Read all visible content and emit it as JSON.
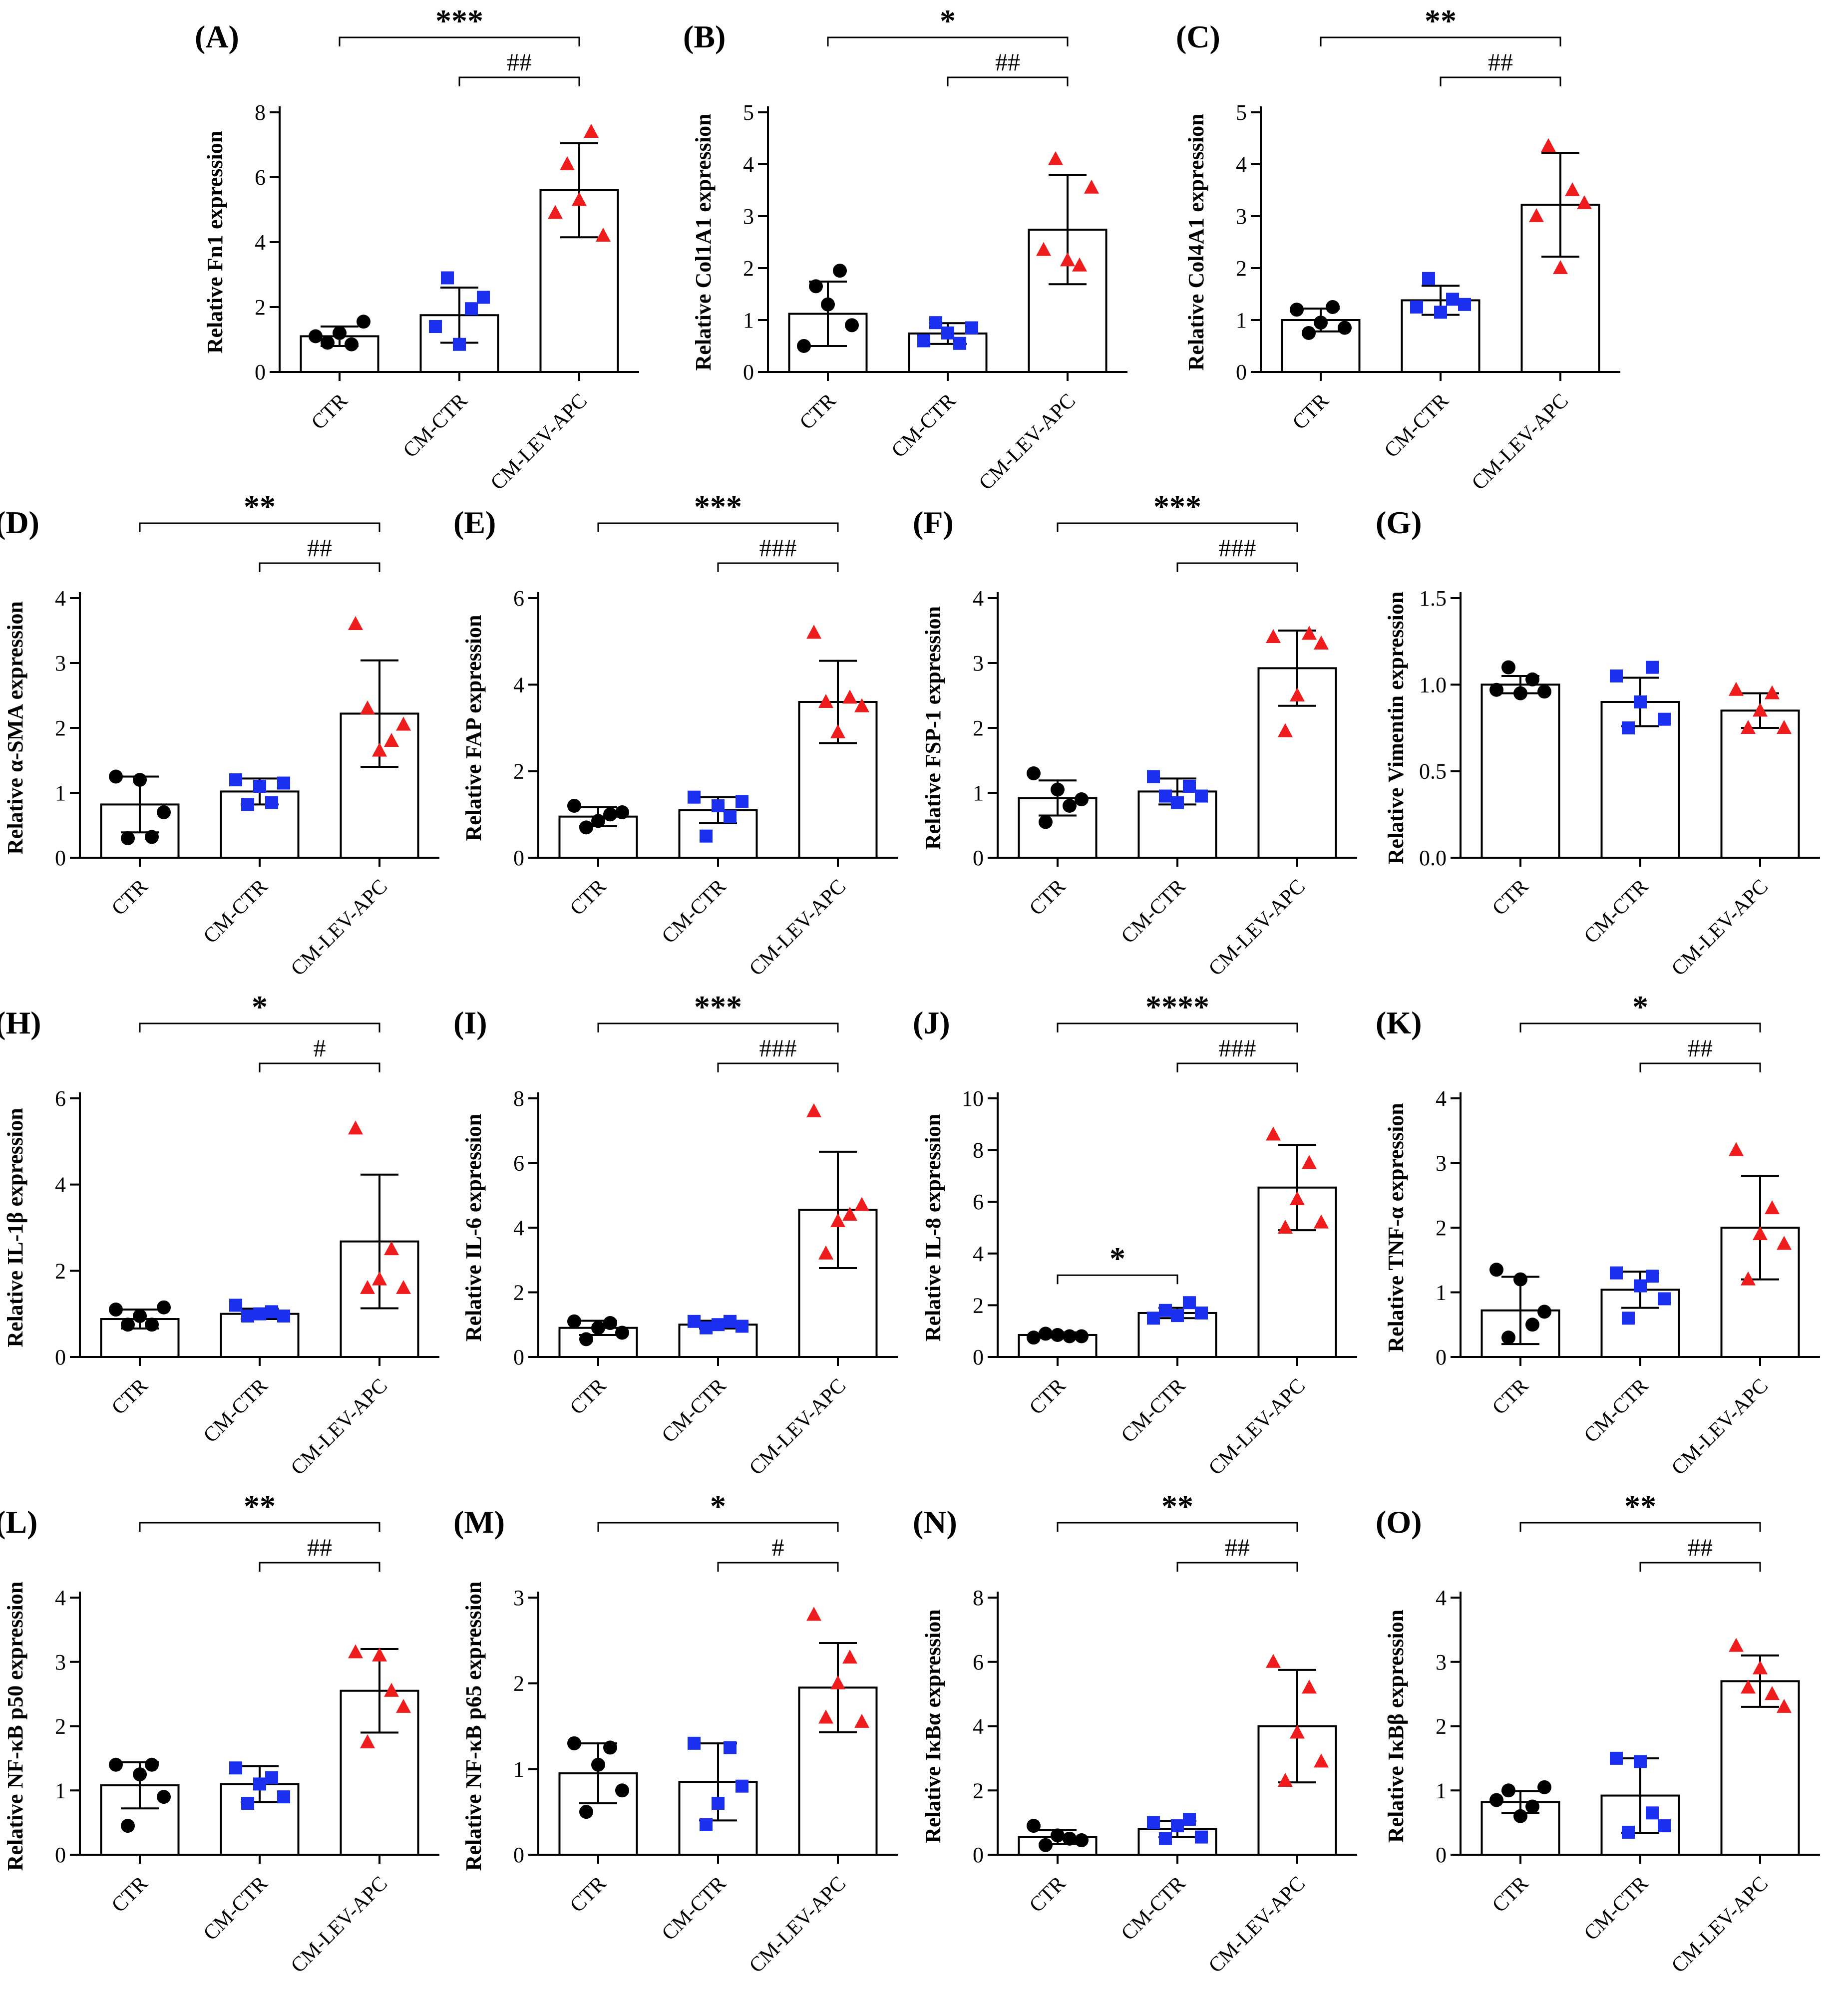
{
  "chart_data": [
    {
      "panel": "(A)",
      "type": "bar",
      "title": "",
      "xlabel": "",
      "ylabel": "Relative Fn1  expression",
      "categories": [
        "CTR",
        "CM-CTR",
        "CM-LEV-APC"
      ],
      "ylim": [
        0,
        8
      ],
      "yticks": [
        "0",
        "2",
        "4",
        "6",
        "8"
      ],
      "series": [
        {
          "name": "mean",
          "values": [
            1.1,
            1.75,
            5.6
          ]
        },
        {
          "name": "sd",
          "values": [
            0.3,
            0.85,
            1.45
          ]
        }
      ],
      "points": [
        [
          1.1,
          0.9,
          1.2,
          0.85,
          1.55
        ],
        [
          1.4,
          2.9,
          0.85,
          1.95,
          2.3
        ],
        [
          4.9,
          6.4,
          5.3,
          7.4,
          4.2
        ]
      ],
      "annotations": [
        {
          "from": 0,
          "to": 2,
          "label": "***"
        },
        {
          "from": 1,
          "to": 2,
          "label": "##"
        }
      ]
    },
    {
      "panel": "(B)",
      "type": "bar",
      "title": "",
      "xlabel": "",
      "ylabel": "Relative Col1A1  expression",
      "categories": [
        "CTR",
        "CM-CTR",
        "CM-LEV-APC"
      ],
      "ylim": [
        0,
        5
      ],
      "yticks": [
        "0",
        "1",
        "2",
        "3",
        "4",
        "5"
      ],
      "series": [
        {
          "name": "mean",
          "values": [
            1.12,
            0.74,
            2.74
          ]
        },
        {
          "name": "sd",
          "values": [
            0.62,
            0.2,
            1.05
          ]
        }
      ],
      "points": [
        [
          0.5,
          1.65,
          1.3,
          1.95,
          0.9
        ],
        [
          0.6,
          0.95,
          0.75,
          0.55,
          0.85
        ],
        [
          2.35,
          4.1,
          2.15,
          2.05,
          3.55
        ]
      ],
      "annotations": [
        {
          "from": 0,
          "to": 2,
          "label": "*"
        },
        {
          "from": 1,
          "to": 2,
          "label": "##"
        }
      ]
    },
    {
      "panel": "(C)",
      "type": "bar",
      "title": "",
      "xlabel": "",
      "ylabel": "Relative Col4A1  expression",
      "categories": [
        "CTR",
        "CM-CTR",
        "CM-LEV-APC"
      ],
      "ylim": [
        0,
        5
      ],
      "yticks": [
        "0",
        "1",
        "2",
        "3",
        "4",
        "5"
      ],
      "series": [
        {
          "name": "mean",
          "values": [
            1.0,
            1.38,
            3.22
          ]
        },
        {
          "name": "sd",
          "values": [
            0.22,
            0.28,
            1.0
          ]
        }
      ],
      "points": [
        [
          1.2,
          0.75,
          0.95,
          1.25,
          0.85
        ],
        [
          1.25,
          1.8,
          1.15,
          1.4,
          1.3
        ],
        [
          3.0,
          4.35,
          2.0,
          3.5,
          3.25
        ]
      ],
      "annotations": [
        {
          "from": 0,
          "to": 2,
          "label": "**"
        },
        {
          "from": 1,
          "to": 2,
          "label": "##"
        }
      ]
    },
    {
      "panel": "(D)",
      "type": "bar",
      "title": "",
      "xlabel": "",
      "ylabel": "Relative α-SMA  expression",
      "categories": [
        "CTR",
        "CM-CTR",
        "CM-LEV-APC"
      ],
      "ylim": [
        0,
        4
      ],
      "yticks": [
        "0",
        "1",
        "2",
        "3",
        "4"
      ],
      "series": [
        {
          "name": "mean",
          "values": [
            0.82,
            1.02,
            2.22
          ]
        },
        {
          "name": "sd",
          "values": [
            0.43,
            0.2,
            0.82
          ]
        }
      ],
      "points": [
        [
          1.25,
          0.3,
          1.2,
          0.32,
          0.7
        ],
        [
          1.2,
          0.82,
          1.1,
          0.85,
          1.15
        ],
        [
          3.6,
          2.3,
          1.65,
          1.8,
          2.05
        ]
      ],
      "annotations": [
        {
          "from": 0,
          "to": 2,
          "label": "**"
        },
        {
          "from": 1,
          "to": 2,
          "label": "##"
        }
      ]
    },
    {
      "panel": "(E)",
      "type": "bar",
      "title": "",
      "xlabel": "",
      "ylabel": "Relative FAP expression",
      "categories": [
        "CTR",
        "CM-CTR",
        "CM-LEV-APC"
      ],
      "ylim": [
        0,
        6
      ],
      "yticks": [
        "0",
        "2",
        "4",
        "6"
      ],
      "series": [
        {
          "name": "mean",
          "values": [
            0.95,
            1.1,
            3.6
          ]
        },
        {
          "name": "sd",
          "values": [
            0.22,
            0.3,
            0.95
          ]
        }
      ],
      "points": [
        [
          1.2,
          0.7,
          0.85,
          1.0,
          1.05
        ],
        [
          1.4,
          0.5,
          1.2,
          0.95,
          1.3
        ],
        [
          5.2,
          3.6,
          2.9,
          3.7,
          3.5
        ]
      ],
      "annotations": [
        {
          "from": 0,
          "to": 2,
          "label": "***"
        },
        {
          "from": 1,
          "to": 2,
          "label": "###"
        }
      ]
    },
    {
      "panel": "(F)",
      "type": "bar",
      "title": "",
      "xlabel": "",
      "ylabel": "Relative FSP-1  expression",
      "categories": [
        "CTR",
        "CM-CTR",
        "CM-LEV-APC"
      ],
      "ylim": [
        0,
        4
      ],
      "yticks": [
        "0",
        "1",
        "2",
        "3",
        "4"
      ],
      "series": [
        {
          "name": "mean",
          "values": [
            0.92,
            1.02,
            2.92
          ]
        },
        {
          "name": "sd",
          "values": [
            0.27,
            0.2,
            0.58
          ]
        }
      ],
      "points": [
        [
          1.3,
          0.55,
          1.05,
          0.8,
          0.9
        ],
        [
          1.25,
          0.95,
          0.85,
          1.1,
          0.95
        ],
        [
          3.4,
          1.95,
          2.5,
          3.45,
          3.3
        ]
      ],
      "annotations": [
        {
          "from": 0,
          "to": 2,
          "label": "***"
        },
        {
          "from": 1,
          "to": 2,
          "label": "###"
        }
      ]
    },
    {
      "panel": "(G)",
      "type": "bar",
      "title": "",
      "xlabel": "",
      "ylabel": "Relative Vimentin expression",
      "categories": [
        "CTR",
        "CM-CTR",
        "CM-LEV-APC"
      ],
      "ylim": [
        0,
        1.5
      ],
      "yticks": [
        "0.0",
        "0.5",
        "1.0",
        "1.5"
      ],
      "series": [
        {
          "name": "mean",
          "values": [
            1.0,
            0.9,
            0.85
          ]
        },
        {
          "name": "sd",
          "values": [
            0.05,
            0.14,
            0.1
          ]
        }
      ],
      "points": [
        [
          0.97,
          1.1,
          0.95,
          1.03,
          0.96
        ],
        [
          1.05,
          0.75,
          0.9,
          1.1,
          0.8
        ],
        [
          0.97,
          0.75,
          0.85,
          0.95,
          0.75
        ]
      ],
      "annotations": []
    },
    {
      "panel": "(H)",
      "type": "bar",
      "title": "",
      "xlabel": "",
      "ylabel": "Relative IL-1β  expression",
      "categories": [
        "CTR",
        "CM-CTR",
        "CM-LEV-APC"
      ],
      "ylim": [
        0,
        6
      ],
      "yticks": [
        "0",
        "2",
        "4",
        "6"
      ],
      "series": [
        {
          "name": "mean",
          "values": [
            0.88,
            1.0,
            2.68
          ]
        },
        {
          "name": "sd",
          "values": [
            0.22,
            0.12,
            1.55
          ]
        }
      ],
      "points": [
        [
          1.1,
          0.75,
          0.95,
          0.75,
          1.15
        ],
        [
          1.2,
          0.95,
          1.0,
          1.05,
          0.95
        ],
        [
          5.3,
          1.6,
          1.8,
          2.5,
          1.6
        ]
      ],
      "annotations": [
        {
          "from": 0,
          "to": 2,
          "label": "*"
        },
        {
          "from": 1,
          "to": 2,
          "label": "#"
        }
      ]
    },
    {
      "panel": "(I)",
      "type": "bar",
      "title": "",
      "xlabel": "",
      "ylabel": "Relative IL-6  expression",
      "categories": [
        "CTR",
        "CM-CTR",
        "CM-LEV-APC"
      ],
      "ylim": [
        0,
        8
      ],
      "yticks": [
        "0",
        "2",
        "4",
        "6",
        "8"
      ],
      "series": [
        {
          "name": "mean",
          "values": [
            0.9,
            1.0,
            4.55
          ]
        },
        {
          "name": "sd",
          "values": [
            0.22,
            0.12,
            1.8
          ]
        }
      ],
      "points": [
        [
          1.1,
          0.55,
          0.9,
          1.05,
          0.75
        ],
        [
          1.1,
          0.9,
          1.0,
          1.1,
          0.95
        ],
        [
          7.6,
          3.2,
          4.2,
          4.4,
          4.7
        ]
      ],
      "annotations": [
        {
          "from": 0,
          "to": 2,
          "label": "***"
        },
        {
          "from": 1,
          "to": 2,
          "label": "###"
        }
      ]
    },
    {
      "panel": "(J)",
      "type": "bar",
      "title": "",
      "xlabel": "",
      "ylabel": "Relative IL-8  expression",
      "categories": [
        "CTR",
        "CM-CTR",
        "CM-LEV-APC"
      ],
      "ylim": [
        0,
        10
      ],
      "yticks": [
        "0",
        "2",
        "4",
        "6",
        "8",
        "10"
      ],
      "series": [
        {
          "name": "mean",
          "values": [
            0.85,
            1.7,
            6.55
          ]
        },
        {
          "name": "sd",
          "values": [
            0.1,
            0.2,
            1.65
          ]
        }
      ],
      "points": [
        [
          0.75,
          0.9,
          0.85,
          0.8,
          0.8
        ],
        [
          1.5,
          1.8,
          1.6,
          2.1,
          1.7
        ],
        [
          8.6,
          5.0,
          6.1,
          7.5,
          5.2
        ]
      ],
      "annotations": [
        {
          "from": 0,
          "to": 2,
          "label": "****"
        },
        {
          "from": 1,
          "to": 2,
          "label": "###"
        },
        {
          "from": 0,
          "to": 1,
          "label": "*"
        }
      ]
    },
    {
      "panel": "(K)",
      "type": "bar",
      "title": "",
      "xlabel": "",
      "ylabel": "Relative TNF-α  expression",
      "categories": [
        "CTR",
        "CM-CTR",
        "CM-LEV-APC"
      ],
      "ylim": [
        0,
        4
      ],
      "yticks": [
        "0",
        "1",
        "2",
        "3",
        "4"
      ],
      "series": [
        {
          "name": "mean",
          "values": [
            0.72,
            1.04,
            2.0
          ]
        },
        {
          "name": "sd",
          "values": [
            0.52,
            0.28,
            0.8
          ]
        }
      ],
      "points": [
        [
          1.35,
          0.3,
          1.2,
          0.5,
          0.7
        ],
        [
          1.3,
          0.6,
          1.1,
          1.25,
          0.9
        ],
        [
          3.2,
          1.2,
          1.9,
          2.3,
          1.75
        ]
      ],
      "annotations": [
        {
          "from": 0,
          "to": 2,
          "label": "*"
        },
        {
          "from": 1,
          "to": 2,
          "label": "##"
        }
      ]
    },
    {
      "panel": "(L)",
      "type": "bar",
      "title": "",
      "xlabel": "",
      "ylabel": "Relative NF-κB p50  expression",
      "categories": [
        "CTR",
        "CM-CTR",
        "CM-LEV-APC"
      ],
      "ylim": [
        0,
        4
      ],
      "yticks": [
        "0",
        "1",
        "2",
        "3",
        "4"
      ],
      "series": [
        {
          "name": "mean",
          "values": [
            1.08,
            1.1,
            2.55
          ]
        },
        {
          "name": "sd",
          "values": [
            0.36,
            0.28,
            0.65
          ]
        }
      ],
      "points": [
        [
          1.4,
          0.45,
          1.25,
          1.4,
          0.9
        ],
        [
          1.35,
          0.8,
          1.1,
          1.2,
          0.9
        ],
        [
          3.15,
          1.75,
          3.1,
          2.55,
          2.3
        ]
      ],
      "annotations": [
        {
          "from": 0,
          "to": 2,
          "label": "**"
        },
        {
          "from": 1,
          "to": 2,
          "label": "##"
        }
      ]
    },
    {
      "panel": "(M)",
      "type": "bar",
      "title": "",
      "xlabel": "",
      "ylabel": "Relative NF-κB p65  expression",
      "categories": [
        "CTR",
        "CM-CTR",
        "CM-LEV-APC"
      ],
      "ylim": [
        0,
        3
      ],
      "yticks": [
        "0",
        "1",
        "2",
        "3"
      ],
      "series": [
        {
          "name": "mean",
          "values": [
            0.95,
            0.85,
            1.95
          ]
        },
        {
          "name": "sd",
          "values": [
            0.35,
            0.45,
            0.52
          ]
        }
      ],
      "points": [
        [
          1.3,
          0.5,
          1.05,
          1.25,
          0.75
        ],
        [
          1.3,
          0.35,
          0.6,
          1.25,
          0.8
        ],
        [
          2.8,
          1.6,
          2.0,
          2.3,
          1.55
        ]
      ],
      "annotations": [
        {
          "from": 0,
          "to": 2,
          "label": "*"
        },
        {
          "from": 1,
          "to": 2,
          "label": "#"
        }
      ]
    },
    {
      "panel": "(N)",
      "type": "bar",
      "title": "",
      "xlabel": "",
      "ylabel": "Relative IκBα  expression",
      "categories": [
        "CTR",
        "CM-CTR",
        "CM-LEV-APC"
      ],
      "ylim": [
        0,
        8
      ],
      "yticks": [
        "0",
        "2",
        "4",
        "6",
        "8"
      ],
      "series": [
        {
          "name": "mean",
          "values": [
            0.55,
            0.8,
            4.0
          ]
        },
        {
          "name": "sd",
          "values": [
            0.22,
            0.25,
            1.75
          ]
        }
      ],
      "points": [
        [
          0.9,
          0.3,
          0.6,
          0.5,
          0.45
        ],
        [
          1.0,
          0.5,
          0.9,
          1.1,
          0.55
        ],
        [
          6.0,
          2.3,
          3.8,
          5.2,
          2.9
        ]
      ],
      "annotations": [
        {
          "from": 0,
          "to": 2,
          "label": "**"
        },
        {
          "from": 1,
          "to": 2,
          "label": "##"
        }
      ]
    },
    {
      "panel": "(O)",
      "type": "bar",
      "title": "",
      "xlabel": "",
      "ylabel": "Relative IκBβ  expression",
      "categories": [
        "CTR",
        "CM-CTR",
        "CM-LEV-APC"
      ],
      "ylim": [
        0,
        4
      ],
      "yticks": [
        "0",
        "1",
        "2",
        "3",
        "4"
      ],
      "series": [
        {
          "name": "mean",
          "values": [
            0.82,
            0.92,
            2.7
          ]
        },
        {
          "name": "sd",
          "values": [
            0.17,
            0.58,
            0.4
          ]
        }
      ],
      "points": [
        [
          0.85,
          1.0,
          0.6,
          0.75,
          1.05
        ],
        [
          1.5,
          0.35,
          1.45,
          0.65,
          0.45
        ],
        [
          3.25,
          2.6,
          2.9,
          2.5,
          2.3
        ]
      ],
      "annotations": [
        {
          "from": 0,
          "to": 2,
          "label": "**"
        },
        {
          "from": 1,
          "to": 2,
          "label": "##"
        }
      ]
    }
  ],
  "colors": {
    "group_0": "#000000",
    "group_1": "#1a2ff0",
    "group_2": "#ee1c1c",
    "bar_fill": "#ffffff",
    "axis": "#000000"
  },
  "markers": [
    "circle",
    "square",
    "triangle"
  ]
}
